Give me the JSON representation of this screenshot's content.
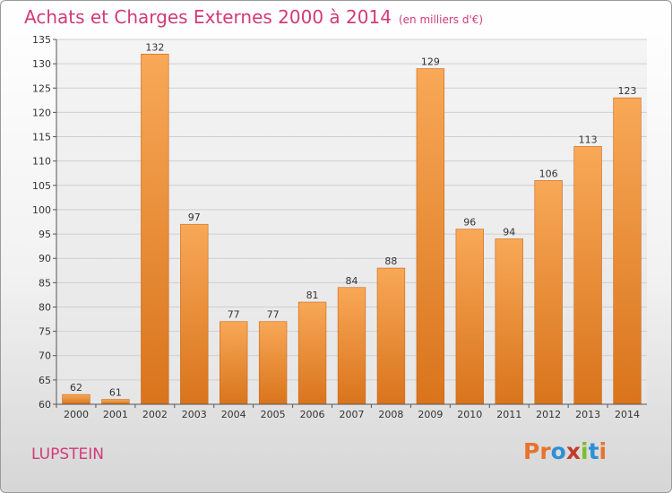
{
  "header": {
    "title": "Achats et Charges Externes 2000 à 2014",
    "subtitle": "(en milliers d'€)"
  },
  "footer": {
    "commune": "LUPSTEIN",
    "logo": "Proxiti",
    "logo_colors": [
      "#e8732d",
      "#e8732d",
      "#2f8fd6",
      "#c23c2c",
      "#7bbd2c",
      "#2f8fd6",
      "#e8732d"
    ]
  },
  "chart_data": {
    "type": "bar",
    "title": "Achats et Charges Externes 2000 à 2014",
    "subtitle": "(en milliers d'€)",
    "categories": [
      "2000",
      "2001",
      "2002",
      "2003",
      "2004",
      "2005",
      "2006",
      "2007",
      "2008",
      "2009",
      "2010",
      "2011",
      "2012",
      "2013",
      "2014"
    ],
    "values": [
      62,
      61,
      132,
      97,
      77,
      77,
      81,
      84,
      88,
      129,
      96,
      94,
      106,
      113,
      123
    ],
    "ylim": [
      60,
      135
    ],
    "yticks": [
      60,
      65,
      70,
      75,
      80,
      85,
      90,
      95,
      100,
      105,
      110,
      115,
      120,
      125,
      130,
      135
    ],
    "grid": true,
    "bar_color_light": "#f8a857",
    "bar_color_dark": "#d9741c"
  }
}
